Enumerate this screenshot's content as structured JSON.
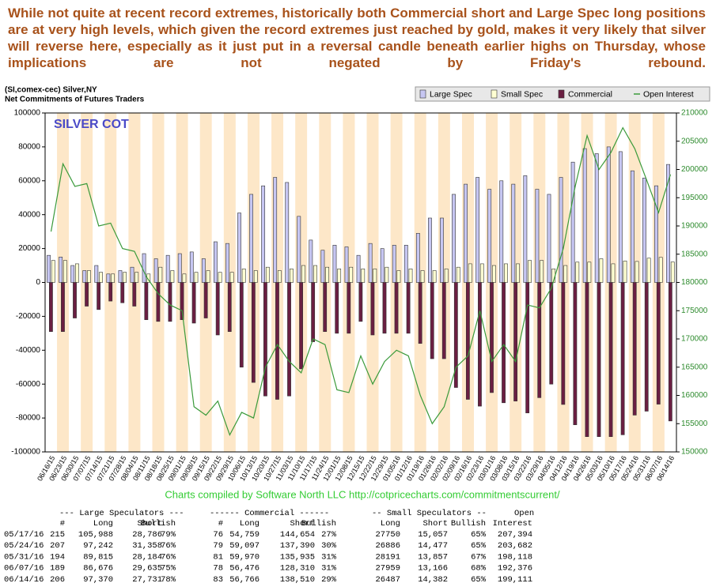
{
  "chart_data": {
    "type": "bar",
    "title": "While not quite at recent record extremes, historically both Commercial short and Large Spec long positions are at very high levels, which given the record extremes just reached by gold, makes it very likely that silver will reverse here, especially as it just put in a reversal candle beneath earlier highs on Thursday, whose implications are not negated by Friday's rebound.",
    "subtitle": "(SI,comex-cec) Silver,NY",
    "subtitle2": "Net Commitments of Futures Traders",
    "annotation": "SILVER COT",
    "credit": "Charts compiled by Software North LLC  http://cotpricecharts.com/commitmentscurrent/",
    "categories": [
      "06/16/15",
      "06/23/15",
      "06/30/15",
      "07/07/15",
      "07/14/15",
      "07/21/15",
      "07/28/15",
      "08/04/15",
      "08/11/15",
      "08/18/15",
      "08/25/15",
      "09/01/15",
      "09/08/15",
      "09/15/15",
      "09/22/15",
      "09/29/15",
      "10/06/15",
      "10/13/15",
      "10/20/15",
      "10/27/15",
      "11/03/15",
      "11/10/15",
      "11/17/15",
      "11/24/15",
      "12/01/15",
      "12/08/15",
      "12/15/15",
      "12/22/15",
      "12/29/15",
      "01/05/16",
      "01/12/16",
      "01/19/16",
      "01/26/16",
      "02/02/16",
      "02/09/16",
      "02/16/16",
      "02/23/16",
      "03/01/16",
      "03/08/16",
      "03/15/16",
      "03/22/16",
      "03/29/16",
      "04/05/16",
      "04/12/16",
      "04/19/16",
      "04/26/16",
      "05/03/16",
      "05/10/16",
      "05/17/16",
      "05/24/16",
      "05/31/16",
      "06/07/16",
      "06/14/16"
    ],
    "series": [
      {
        "name": "Large Spec",
        "color": "#c6c6f2",
        "values": [
          16000,
          15000,
          10000,
          7000,
          10000,
          5000,
          7000,
          9000,
          17000,
          14000,
          16000,
          17000,
          18000,
          14000,
          24000,
          23000,
          41000,
          52000,
          57000,
          62000,
          59000,
          39000,
          25000,
          19000,
          22000,
          21000,
          16000,
          23000,
          20000,
          22000,
          22000,
          29000,
          38000,
          38000,
          52000,
          58000,
          62000,
          55000,
          60000,
          58000,
          63000,
          55000,
          52000,
          62000,
          71000,
          79000,
          76000,
          80000,
          77202,
          65884,
          61631,
          57041,
          69639
        ]
      },
      {
        "name": "Small Spec",
        "color": "#ffffd2",
        "values": [
          13000,
          13000,
          11000,
          7000,
          6000,
          5000,
          6000,
          6000,
          5000,
          9000,
          7000,
          5000,
          6000,
          7000,
          6000,
          6000,
          8000,
          7000,
          9000,
          7000,
          8000,
          10000,
          10000,
          9000,
          8000,
          9000,
          8000,
          8000,
          9000,
          7000,
          8000,
          7000,
          7000,
          8000,
          9000,
          11000,
          11000,
          10000,
          11000,
          11000,
          13000,
          13000,
          8000,
          10000,
          12000,
          12000,
          14000,
          11000,
          12693,
          12409,
          14334,
          14793,
          12105
        ]
      },
      {
        "name": "Commercial",
        "color": "#6a1f42",
        "values": [
          -29000,
          -29000,
          -21000,
          -14000,
          -16000,
          -11000,
          -12000,
          -14000,
          -22000,
          -23000,
          -23000,
          -22000,
          -24000,
          -21000,
          -31000,
          -29000,
          -50000,
          -59000,
          -67000,
          -69000,
          -67000,
          -51000,
          -35000,
          -29000,
          -30000,
          -30000,
          -23000,
          -31000,
          -30000,
          -30000,
          -30000,
          -36000,
          -45000,
          -45000,
          -62000,
          -69000,
          -73000,
          -65000,
          -71000,
          -70000,
          -77000,
          -68000,
          -60000,
          -72000,
          -84000,
          -91000,
          -91000,
          -91000,
          -89895,
          -78293,
          -75965,
          -71834,
          -81744
        ]
      },
      {
        "name": "Open Interest",
        "color": "#3a9a3a",
        "axis": "y2",
        "values": [
          189000,
          201000,
          197000,
          197500,
          190000,
          190500,
          186000,
          185500,
          181000,
          178000,
          176000,
          175000,
          158000,
          156500,
          159000,
          153000,
          157000,
          156000,
          165000,
          169000,
          166000,
          164000,
          170000,
          169000,
          161000,
          160500,
          167000,
          162000,
          166000,
          168000,
          167000,
          160000,
          155000,
          158000,
          165000,
          167000,
          175000,
          166000,
          169000,
          166000,
          176000,
          175500,
          179000,
          186000,
          197000,
          206000,
          200000,
          203000,
          207394,
          203682,
          198118,
          192376,
          199111
        ]
      }
    ],
    "ylim": [
      -100000,
      100000
    ],
    "yticks": [
      -100000,
      -80000,
      -60000,
      -40000,
      -20000,
      0,
      20000,
      40000,
      60000,
      80000,
      100000
    ],
    "y2lim": [
      150000,
      210000
    ],
    "y2ticks": [
      150000,
      155000,
      160000,
      165000,
      170000,
      175000,
      180000,
      185000,
      190000,
      195000,
      200000,
      205000,
      210000
    ],
    "grid": false,
    "legend": "top-right"
  },
  "table": {
    "group_headers": [
      "--- Large Speculators ---",
      "------ Commercial ------",
      "-- Small Speculators --",
      "Open"
    ],
    "columns": [
      "#",
      "Long",
      "Short",
      "Bullish",
      "#",
      "Long",
      "Short",
      "Bullish",
      "Long",
      "Short",
      "Bullish",
      "Interest"
    ],
    "rows": [
      [
        "05/17/16",
        "215",
        "105,988",
        "28,786",
        "79%",
        "76",
        "54,759",
        "144,654",
        "27%",
        "27750",
        "15,057",
        "65%",
        "207,394"
      ],
      [
        "05/24/16",
        "207",
        "97,242",
        "31,358",
        "76%",
        "79",
        "59,097",
        "137,390",
        "30%",
        "26886",
        "14,477",
        "65%",
        "203,682"
      ],
      [
        "05/31/16",
        "194",
        "89,815",
        "28,184",
        "76%",
        "81",
        "59,970",
        "135,935",
        "31%",
        "28191",
        "13,857",
        "67%",
        "198,118"
      ],
      [
        "06/07/16",
        "189",
        "86,676",
        "29,635",
        "75%",
        "78",
        "56,476",
        "128,310",
        "31%",
        "27959",
        "13,166",
        "68%",
        "192,376"
      ],
      [
        "06/14/16",
        "206",
        "97,370",
        "27,731",
        "78%",
        "83",
        "56,766",
        "138,510",
        "29%",
        "26487",
        "14,382",
        "65%",
        "199,111"
      ]
    ]
  }
}
